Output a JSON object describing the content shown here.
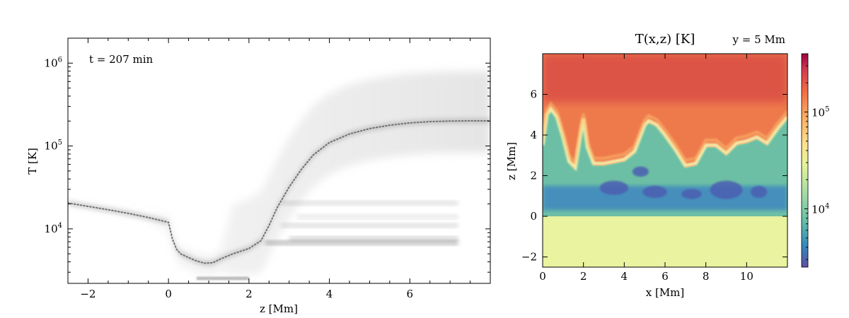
{
  "chart_data": [
    {
      "type": "line",
      "title": "",
      "annotation": "t = 207 min",
      "xlabel": "z [Mm]",
      "ylabel": "T [K]",
      "xlim": [
        -2.5,
        8.0
      ],
      "ylim": [
        2200,
        2000000
      ],
      "yscale": "log",
      "x_ticks": [
        -2,
        0,
        2,
        4,
        6
      ],
      "x_tick_labels": [
        "−2",
        "0",
        "2",
        "4",
        "6"
      ],
      "y_ticks": [
        10000,
        100000,
        1000000
      ],
      "y_tick_labels": [
        {
          "base": "10",
          "exp": "4"
        },
        {
          "base": "10",
          "exp": "5"
        },
        {
          "base": "10",
          "exp": "6"
        }
      ],
      "grid": false,
      "background": "grayscale 2D histogram of T(z) across all columns",
      "series": [
        {
          "style": "dotted",
          "color": "#707070",
          "x": [
            -2.5,
            -2.0,
            -1.5,
            -1.0,
            -0.5,
            0.0,
            0.1,
            0.2,
            0.3,
            0.5,
            0.7,
            0.9,
            1.1,
            1.3,
            1.6,
            2.0,
            2.3,
            2.5,
            2.7,
            3.0,
            3.3,
            3.6,
            4.0,
            4.5,
            5.0,
            5.5,
            6.0,
            6.5,
            7.0,
            7.5,
            8.0
          ],
          "y": [
            20500,
            18700,
            17000,
            15400,
            13700,
            12000,
            7500,
            5700,
            5000,
            4500,
            4100,
            3850,
            3900,
            4350,
            5000,
            5800,
            7200,
            11000,
            18000,
            32000,
            52000,
            78000,
            110000,
            140000,
            162000,
            178000,
            190000,
            197000,
            200000,
            201000,
            201000
          ]
        }
      ]
    },
    {
      "type": "heatmap",
      "title": "T(x,z) [K]",
      "subtitle": "y = 5 Mm",
      "xlabel": "x [Mm]",
      "ylabel": "z [Mm]",
      "xlim": [
        0,
        12
      ],
      "ylim": [
        -2.5,
        8
      ],
      "x_ticks": [
        0,
        2,
        4,
        6,
        8,
        10
      ],
      "x_tick_labels": [
        "0",
        "2",
        "4",
        "6",
        "8",
        "10"
      ],
      "y_ticks": [
        -2,
        0,
        2,
        4,
        6
      ],
      "y_tick_labels": [
        "−2",
        "0",
        "2",
        "4",
        "6"
      ],
      "colormap": "Spectral_r",
      "colorbar": {
        "scale": "log",
        "range": [
          2500,
          400000
        ],
        "ticks": [
          10000,
          100000
        ],
        "tick_labels": [
          {
            "base": "10",
            "exp": "4"
          },
          {
            "base": "10",
            "exp": "5"
          }
        ]
      },
      "transition_region_height": [
        [
          0.0,
          3.4
        ],
        [
          0.2,
          4.9
        ],
        [
          0.4,
          5.2
        ],
        [
          0.7,
          4.8
        ],
        [
          1.0,
          3.8
        ],
        [
          1.3,
          2.6
        ],
        [
          1.6,
          2.3
        ],
        [
          1.9,
          4.2
        ],
        [
          2.0,
          4.7
        ],
        [
          2.2,
          3.3
        ],
        [
          2.5,
          2.5
        ],
        [
          3.0,
          2.5
        ],
        [
          3.5,
          2.6
        ],
        [
          4.0,
          2.7
        ],
        [
          4.5,
          3.1
        ],
        [
          5.0,
          4.4
        ],
        [
          5.2,
          4.6
        ],
        [
          5.6,
          4.4
        ],
        [
          6.0,
          3.9
        ],
        [
          6.5,
          3.2
        ],
        [
          7.0,
          2.4
        ],
        [
          7.5,
          2.5
        ],
        [
          8.0,
          3.4
        ],
        [
          8.5,
          3.4
        ],
        [
          9.0,
          3.0
        ],
        [
          9.5,
          3.5
        ],
        [
          10.0,
          3.6
        ],
        [
          10.5,
          3.8
        ],
        [
          11.0,
          3.5
        ],
        [
          11.5,
          4.2
        ],
        [
          12.0,
          4.8
        ]
      ],
      "cool_layer_z": [
        0.3,
        1.5
      ],
      "photosphere_z": 0.0
    }
  ],
  "colors": {
    "hot_corona": "#d84a45",
    "warm_corona": "#ee7a4c",
    "transition": "#f5f5b0",
    "chromosphere": "#6cbfa4",
    "cool_pockets": "#4a5db0",
    "photosphere": "#e9f3a0",
    "dotted_line": "#707070"
  }
}
